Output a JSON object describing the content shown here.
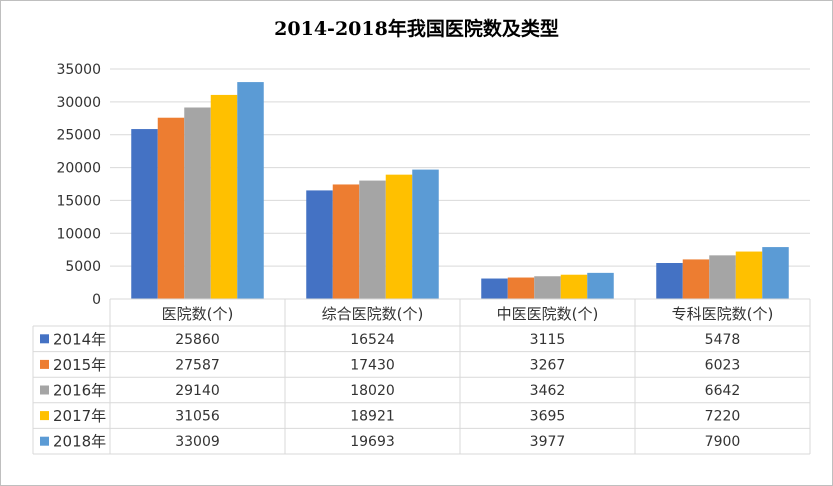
{
  "chart_data": {
    "type": "bar",
    "title": "2014-2018年我国医院数及类型",
    "categories": [
      "医院数(个)",
      "综合医院数(个)",
      "中医医院数(个)",
      "专科医院数(个)"
    ],
    "series": [
      {
        "name": "2014年",
        "color": "#4472c4",
        "values": [
          25860,
          16524,
          3115,
          5478
        ]
      },
      {
        "name": "2015年",
        "color": "#ed7d31",
        "values": [
          27587,
          17430,
          3267,
          6023
        ]
      },
      {
        "name": "2016年",
        "color": "#a5a5a5",
        "values": [
          29140,
          18020,
          3462,
          6642
        ]
      },
      {
        "name": "2017年",
        "color": "#ffc000",
        "values": [
          31056,
          18921,
          3695,
          7220
        ]
      },
      {
        "name": "2018年",
        "color": "#5b9bd5",
        "values": [
          33009,
          19693,
          3977,
          7900
        ]
      }
    ],
    "ylim": [
      0,
      35000
    ],
    "yticks": [
      0,
      5000,
      10000,
      15000,
      20000,
      25000,
      30000,
      35000
    ],
    "grid": true,
    "legend": "data-table"
  }
}
